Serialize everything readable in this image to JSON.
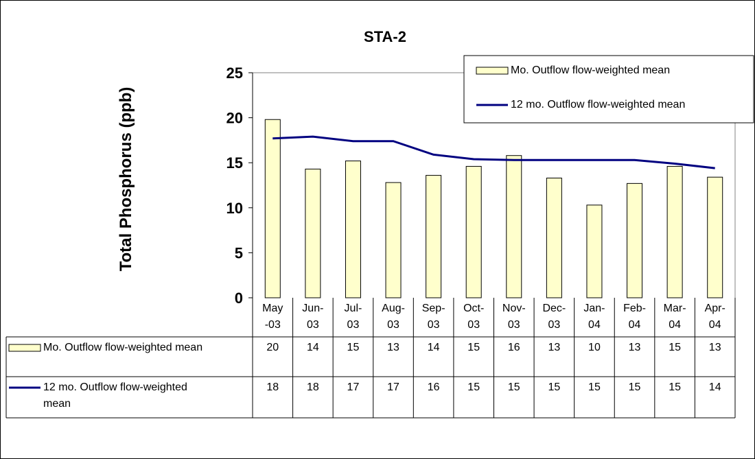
{
  "chart_data": {
    "type": "bar",
    "title": "STA-2",
    "y_label": "Total Phosphorus (ppb)",
    "categories": [
      "May-03",
      "Jun-03",
      "Jul-03",
      "Aug-03",
      "Sep-03",
      "Oct-03",
      "Nov-03",
      "Dec-03",
      "Jan-04",
      "Feb-04",
      "Mar-04",
      "Apr-04"
    ],
    "series": [
      {
        "name": "Mo. Outflow flow-weighted mean",
        "type": "bar",
        "color": "#ffffcc",
        "values": [
          19.8,
          14.3,
          15.2,
          12.8,
          13.6,
          14.6,
          15.8,
          13.3,
          10.3,
          12.7,
          14.6,
          13.4
        ],
        "value_labels": [
          "20",
          "14",
          "15",
          "13",
          "14",
          "15",
          "16",
          "13",
          "10",
          "13",
          "15",
          "13"
        ]
      },
      {
        "name": "12 mo. Outflow flow-weighted mean",
        "type": "line",
        "color": "#000080",
        "values": [
          17.7,
          17.9,
          17.4,
          17.4,
          15.9,
          15.4,
          15.3,
          15.3,
          15.3,
          15.3,
          14.9,
          14.4
        ],
        "value_labels": [
          "18",
          "18",
          "17",
          "17",
          "16",
          "15",
          "15",
          "15",
          "15",
          "15",
          "15",
          "14"
        ]
      }
    ],
    "ylim": [
      0,
      25
    ],
    "yticks": [
      0,
      5,
      10,
      15,
      20,
      25
    ],
    "grid": false,
    "legend": "upper right",
    "data_table": true
  }
}
